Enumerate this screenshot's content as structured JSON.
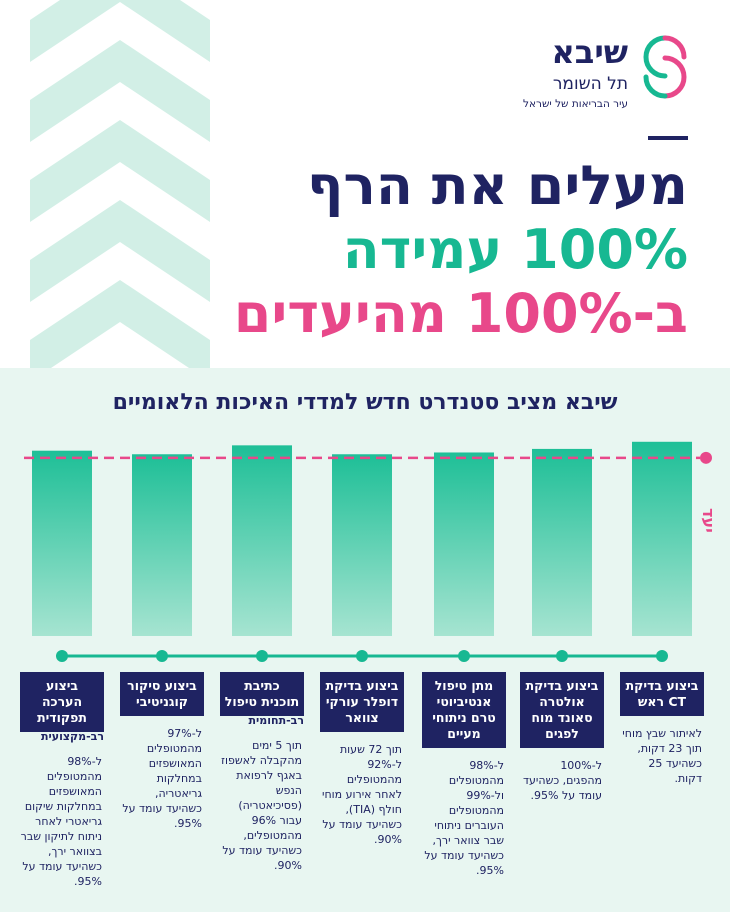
{
  "logo": {
    "name": "שיבא",
    "subtitle": "תל השומר",
    "tagline": "עיר הבריאות של ישראל",
    "colors": {
      "teal": "#17b892",
      "pink": "#e8488a"
    }
  },
  "headline": {
    "line1": "מעלים את הרף",
    "line2": "100% עמידה",
    "line3": "ב-100% מהיעדים"
  },
  "subtitle": "שיבא מציב סטנדרט חדש למדדי האיכות הלאומיים",
  "colors": {
    "navy": "#1f2362",
    "teal": "#17b892",
    "pink": "#e8488a",
    "mint": "#e8f6f1"
  },
  "chart_data": {
    "type": "bar",
    "direction": "rtl",
    "goal_label": "יעד",
    "goal_value": 1.0,
    "categories": [
      {
        "title": "ביצוע בדיקת CT ראש",
        "subtitle": "",
        "description": "לאיתור שבץ מוחי תוך 23 דקות, כשהיעד 25 דקות."
      },
      {
        "title": "ביצוע בדיקת אולטרה סאונד מוח לפגים",
        "subtitle": "",
        "description": "ל-100% מהפגים, כשהיעד עומד על 95%."
      },
      {
        "title": "מתן טיפול אנטיביוטי טרם ניתוחי מעיים",
        "subtitle": "",
        "description": "ל-98% מהמטופלים ול-99% מהמטופלים העוברים ניתוחי שבר צוואר ירך, כשהיעד עומד על 95%."
      },
      {
        "title": "ביצוע בדיקת דופלר עורקי צוואר",
        "subtitle": "",
        "description": "תוך 72 שעות ל-92% מהמטופלים לאחר אירוע מוחי חולף (TIA), כשהיעד עומד על 90%."
      },
      {
        "title": "כתיבת תוכנית טיפול",
        "subtitle": "רב-תחומית",
        "description": "תוך 5 ימים מהקבלה לאשפוז באגף לרפואת הנפש (פסיכיאטריה) עבור 96% מהמטופלים, כשהיעד עומד על 90%."
      },
      {
        "title": "ביצוע סיקור קוגניטיבי",
        "subtitle": "",
        "description": "ל-97% מהמטופלים המאושפזים במחלקות גריאטריה, כשהיעד עומד על 95%."
      },
      {
        "title": "ביצוע הערכה תפקודית",
        "subtitle": "רב-מקצועית",
        "description": "ל-98% מהמטופלים המאושפזים במחלקות שיקום גריאטרי לאחר ניתוח לתיקון שבר בצוואר ירך, כשהיעד עומד על 95%."
      }
    ],
    "values": [
      1.09,
      1.05,
      1.03,
      1.02,
      1.07,
      1.02,
      1.04
    ],
    "ylim": [
      0,
      1.1
    ]
  }
}
